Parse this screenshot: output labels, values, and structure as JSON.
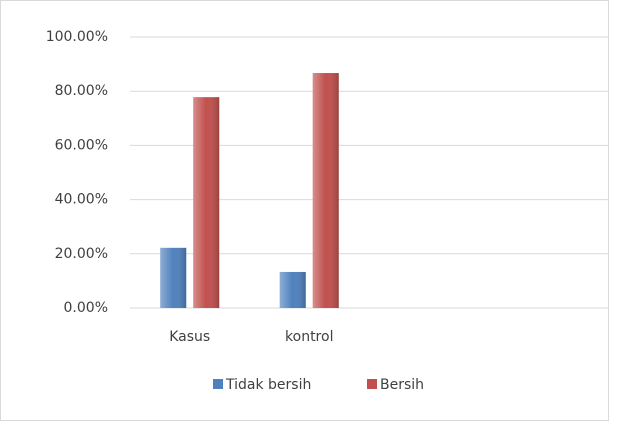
{
  "chart_data": {
    "type": "bar",
    "categories": [
      "Kasus",
      "kontrol",
      null,
      null
    ],
    "series": [
      {
        "name": "Tidak bersih",
        "color": "#4f81bd",
        "values": [
          22.2,
          13.3,
          null,
          null
        ]
      },
      {
        "name": "Bersih",
        "color": "#c0504d",
        "values": [
          77.8,
          86.7,
          null,
          null
        ]
      }
    ],
    "ylim": [
      0,
      100
    ],
    "yticks": [
      {
        "value": 0,
        "label": "0.00%"
      },
      {
        "value": 20,
        "label": "20.00%"
      },
      {
        "value": 40,
        "label": "40.00%"
      },
      {
        "value": 60,
        "label": "60.00%"
      },
      {
        "value": 80,
        "label": "80.00%"
      },
      {
        "value": 100,
        "label": "100.00%"
      }
    ],
    "grid": true,
    "legend": "bottom"
  }
}
